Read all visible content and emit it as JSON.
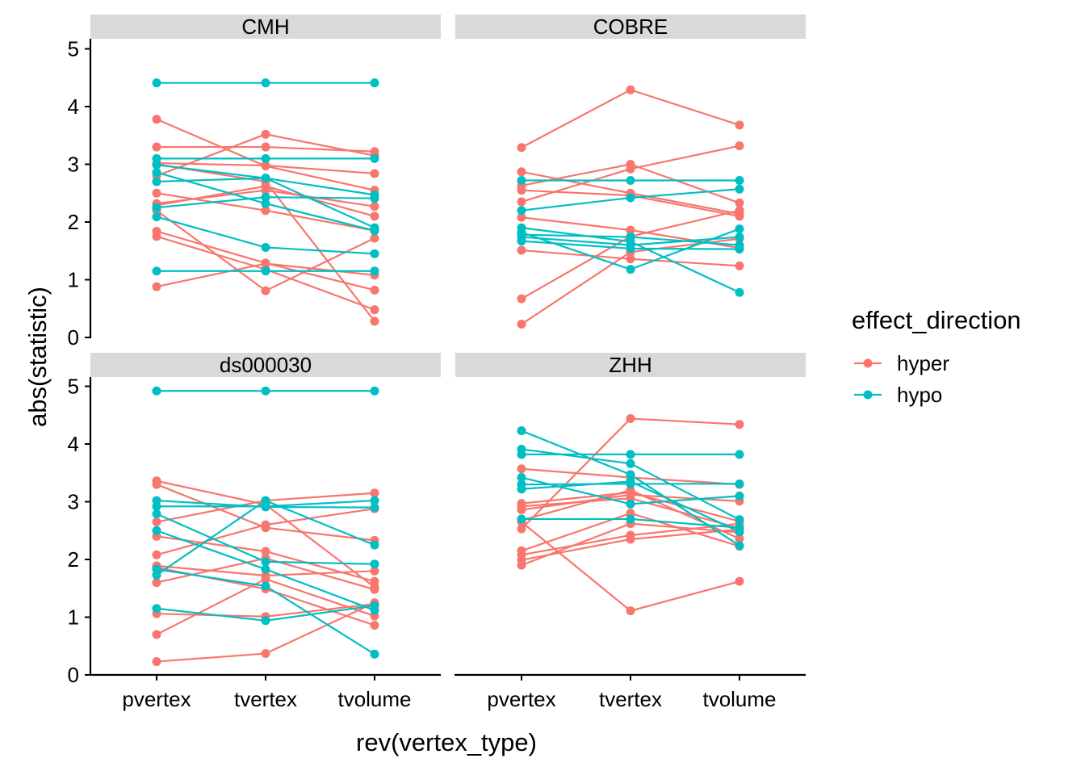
{
  "chart_data": {
    "type": "line",
    "xlabel": "rev(vertex_type)",
    "ylabel": "abs(statistic)",
    "categories": [
      "pvertex",
      "tvertex",
      "tvolume"
    ],
    "y_ticks": [
      "0",
      "1",
      "2",
      "3",
      "4",
      "5"
    ],
    "ylim": [
      0,
      5.1
    ],
    "grid": false,
    "legend": {
      "title": "effect_direction",
      "position": "right",
      "entries": [
        {
          "label": "hyper",
          "color": "#F8766D"
        },
        {
          "label": "hypo",
          "color": "#00BFC4"
        }
      ]
    },
    "facets": [
      {
        "name": "CMH",
        "lines": [
          {
            "group": "hypo",
            "values": [
              4.41,
              4.41,
              4.41
            ]
          },
          {
            "group": "hyper",
            "values": [
              3.78,
              2.97,
              2.55
            ]
          },
          {
            "group": "hyper",
            "values": [
              3.3,
              3.3,
              3.22
            ]
          },
          {
            "group": "hyper",
            "values": [
              3.02,
              2.98,
              2.84
            ]
          },
          {
            "group": "hyper",
            "values": [
              2.8,
              3.52,
              3.15
            ]
          },
          {
            "group": "hyper",
            "values": [
              2.5,
              2.2,
              1.85
            ]
          },
          {
            "group": "hyper",
            "values": [
              2.32,
              2.55,
              2.27
            ]
          },
          {
            "group": "hyper",
            "values": [
              2.29,
              2.62,
              2.1
            ]
          },
          {
            "group": "hyper",
            "values": [
              1.84,
              1.29,
              0.82
            ]
          },
          {
            "group": "hyper",
            "values": [
              1.75,
              1.18,
              0.48
            ]
          },
          {
            "group": "hyper",
            "values": [
              0.88,
              1.28,
              1.08
            ]
          },
          {
            "group": "hyper",
            "values": [
              3.0,
              2.7,
              0.28
            ]
          },
          {
            "group": "hyper",
            "values": [
              2.2,
              0.81,
              1.72
            ]
          },
          {
            "group": "hypo",
            "values": [
              3.1,
              3.1,
              3.1
            ]
          },
          {
            "group": "hypo",
            "values": [
              2.99,
              2.76,
              2.47
            ]
          },
          {
            "group": "hypo",
            "values": [
              2.86,
              2.32,
              1.85
            ]
          },
          {
            "group": "hypo",
            "values": [
              2.7,
              2.76,
              1.9
            ]
          },
          {
            "group": "hypo",
            "values": [
              2.25,
              2.43,
              2.41
            ]
          },
          {
            "group": "hypo",
            "values": [
              2.09,
              1.56,
              1.45
            ]
          },
          {
            "group": "hypo",
            "values": [
              1.15,
              1.15,
              1.15
            ]
          }
        ]
      },
      {
        "name": "COBRE",
        "lines": [
          {
            "group": "hyper",
            "values": [
              3.29,
              4.29,
              3.68
            ]
          },
          {
            "group": "hyper",
            "values": [
              2.87,
              2.5,
              2.14
            ]
          },
          {
            "group": "hyper",
            "values": [
              2.63,
              3.0,
              2.33
            ]
          },
          {
            "group": "hyper",
            "values": [
              2.55,
              2.46,
              2.1
            ]
          },
          {
            "group": "hyper",
            "values": [
              2.35,
              2.92,
              3.32
            ]
          },
          {
            "group": "hyper",
            "values": [
              2.08,
              1.86,
              1.55
            ]
          },
          {
            "group": "hyper",
            "values": [
              1.51,
              1.36,
              1.24
            ]
          },
          {
            "group": "hyper",
            "values": [
              0.67,
              1.75,
              2.2
            ]
          },
          {
            "group": "hyper",
            "values": [
              0.23,
              1.48,
              1.71
            ]
          },
          {
            "group": "hypo",
            "values": [
              2.72,
              2.72,
              2.72
            ]
          },
          {
            "group": "hypo",
            "values": [
              2.2,
              2.42,
              2.57
            ]
          },
          {
            "group": "hypo",
            "values": [
              1.9,
              1.66,
              0.78
            ]
          },
          {
            "group": "hypo",
            "values": [
              1.82,
              1.18,
              1.88
            ]
          },
          {
            "group": "hypo",
            "values": [
              1.78,
              1.74,
              1.6
            ]
          },
          {
            "group": "hypo",
            "values": [
              1.74,
              1.6,
              1.74
            ]
          },
          {
            "group": "hypo",
            "values": [
              1.67,
              1.54,
              1.53
            ]
          }
        ]
      },
      {
        "name": "ds000030",
        "lines": [
          {
            "group": "hypo",
            "values": [
              4.92,
              4.92,
              4.92
            ]
          },
          {
            "group": "hyper",
            "values": [
              3.36,
              2.95,
              1.52
            ]
          },
          {
            "group": "hyper",
            "values": [
              3.3,
              2.55,
              2.33
            ]
          },
          {
            "group": "hyper",
            "values": [
              2.65,
              3.02,
              3.15
            ]
          },
          {
            "group": "hyper",
            "values": [
              2.4,
              2.14,
              1.62
            ]
          },
          {
            "group": "hyper",
            "values": [
              2.08,
              2.6,
              2.88
            ]
          },
          {
            "group": "hyper",
            "values": [
              1.89,
              1.72,
              1.8
            ]
          },
          {
            "group": "hyper",
            "values": [
              1.86,
              1.49,
              0.86
            ]
          },
          {
            "group": "hyper",
            "values": [
              1.6,
              2.02,
              1.48
            ]
          },
          {
            "group": "hyper",
            "values": [
              1.06,
              1.01,
              1.23
            ]
          },
          {
            "group": "hyper",
            "values": [
              0.7,
              1.66,
              1.02
            ]
          },
          {
            "group": "hyper",
            "values": [
              0.23,
              0.37,
              1.25
            ]
          },
          {
            "group": "hypo",
            "values": [
              3.02,
              2.91,
              2.9
            ]
          },
          {
            "group": "hypo",
            "values": [
              2.92,
              2.92,
              3.02
            ]
          },
          {
            "group": "hypo",
            "values": [
              2.79,
              1.96,
              1.92
            ]
          },
          {
            "group": "hypo",
            "values": [
              2.5,
              1.83,
              1.12
            ]
          },
          {
            "group": "hypo",
            "values": [
              1.83,
              1.54,
              0.36
            ]
          },
          {
            "group": "hypo",
            "values": [
              1.73,
              3.02,
              2.25
            ]
          },
          {
            "group": "hypo",
            "values": [
              1.15,
              0.94,
              1.2
            ]
          }
        ]
      },
      {
        "name": "ZHH",
        "lines": [
          {
            "group": "hyper",
            "values": [
              3.57,
              3.42,
              3.3
            ]
          },
          {
            "group": "hyper",
            "values": [
              2.97,
              3.16,
              2.66
            ]
          },
          {
            "group": "hyper",
            "values": [
              2.92,
              3.06,
              2.54
            ]
          },
          {
            "group": "hyper",
            "values": [
              2.86,
              3.12,
              3.01
            ]
          },
          {
            "group": "hyper",
            "values": [
              2.68,
              3.2,
              2.36
            ]
          },
          {
            "group": "hyper",
            "values": [
              2.53,
              4.44,
              4.34
            ]
          },
          {
            "group": "hyper",
            "values": [
              2.15,
              2.8,
              2.23
            ]
          },
          {
            "group": "hyper",
            "values": [
              2.08,
              2.42,
              2.62
            ]
          },
          {
            "group": "hyper",
            "values": [
              1.99,
              2.35,
              2.52
            ]
          },
          {
            "group": "hyper",
            "values": [
              1.9,
              2.62,
              2.47
            ]
          },
          {
            "group": "hyper",
            "values": [
              2.65,
              1.11,
              1.62
            ]
          },
          {
            "group": "hypo",
            "values": [
              4.23,
              3.47,
              2.24
            ]
          },
          {
            "group": "hypo",
            "values": [
              3.91,
              3.66,
              2.69
            ]
          },
          {
            "group": "hypo",
            "values": [
              3.82,
              3.82,
              3.82
            ]
          },
          {
            "group": "hypo",
            "values": [
              3.42,
              2.96,
              3.1
            ]
          },
          {
            "group": "hypo",
            "values": [
              3.3,
              3.31,
              3.31
            ]
          },
          {
            "group": "hypo",
            "values": [
              3.22,
              3.35,
              2.48
            ]
          },
          {
            "group": "hypo",
            "values": [
              2.7,
              2.7,
              2.55
            ]
          }
        ]
      }
    ]
  }
}
